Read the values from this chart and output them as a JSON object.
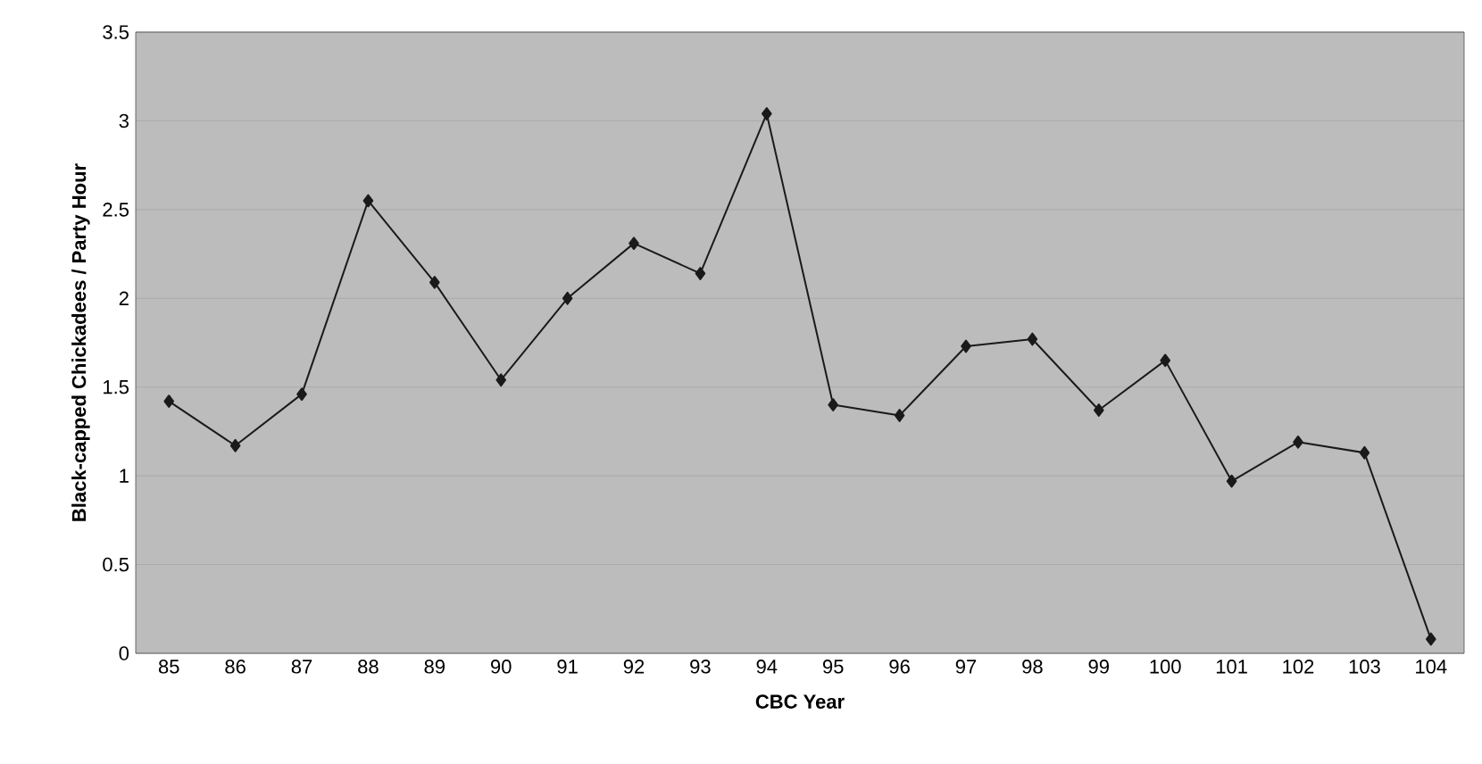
{
  "chart_data": {
    "type": "line",
    "xlabel": "CBC Year",
    "ylabel": "Black-capped Chickadees / Party Hour",
    "categories": [
      "85",
      "86",
      "87",
      "88",
      "89",
      "90",
      "91",
      "92",
      "93",
      "94",
      "95",
      "96",
      "97",
      "98",
      "99",
      "100",
      "101",
      "102",
      "103",
      "104"
    ],
    "series": [
      {
        "color": "#1a1a1a",
        "values": [
          1.42,
          1.17,
          1.46,
          2.55,
          2.09,
          1.54,
          2.0,
          2.31,
          2.14,
          3.04,
          1.4,
          1.34,
          1.73,
          1.77,
          1.37,
          1.65,
          0.97,
          1.19,
          1.13,
          0.08
        ]
      }
    ],
    "ylim": [
      0,
      3.5
    ],
    "yticks": [
      0,
      0.5,
      1,
      1.5,
      2,
      2.5,
      3,
      3.5
    ],
    "grid": "y",
    "marker": "diamond",
    "line_style": "solid"
  }
}
